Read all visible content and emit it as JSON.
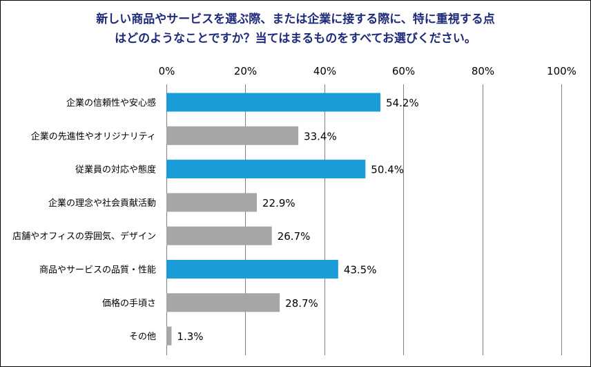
{
  "chart_data": {
    "type": "bar",
    "orientation": "horizontal",
    "title_lines": [
      "新しい商品やサービスを選ぶ際、または企業に接する際に、特に重視する点",
      "はどのようなことですか？当てはまるものをすべてお選びください。"
    ],
    "xlim": [
      0,
      100
    ],
    "xticks": [
      "0%",
      "20%",
      "40%",
      "60%",
      "80%",
      "100%"
    ],
    "grid": true,
    "categories": [
      "企業の信頼性や安心感",
      "企業の先進性やオリジナリティ",
      "従業員の対応や態度",
      "企業の理念や社会貢献活動",
      "店舗やオフィスの雰囲気、デザイン",
      "商品やサービスの品質・性能",
      "価格の手頃さ",
      "その他"
    ],
    "values": [
      54.2,
      33.4,
      50.4,
      22.9,
      26.7,
      43.5,
      28.7,
      1.3
    ],
    "value_labels": [
      "54.2%",
      "33.4%",
      "50.4%",
      "22.9%",
      "26.7%",
      "43.5%",
      "28.7%",
      "1.3%"
    ],
    "highlighted": [
      true,
      false,
      true,
      false,
      false,
      true,
      false,
      false
    ],
    "colors": {
      "highlight": "#1b9dd9",
      "normal": "#a6a6a6",
      "grid": "#7f7f7f",
      "title": "#1f2a7a"
    }
  }
}
